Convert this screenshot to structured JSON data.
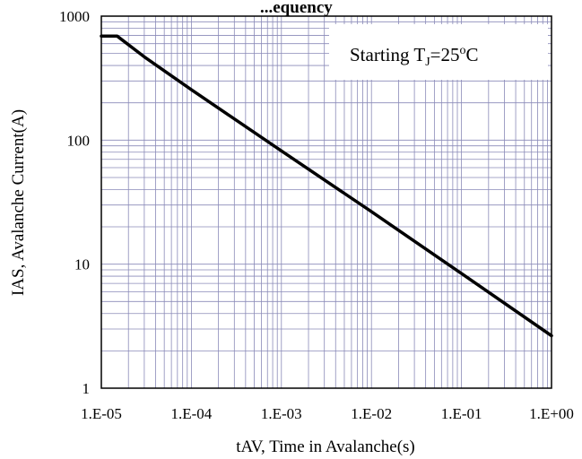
{
  "chart_data": {
    "type": "line",
    "title": "...equency",
    "xlabel": "tAV, Time in Avalanche(s)",
    "ylabel": "IAS, Avalanche Current(A)",
    "x_scale": "log",
    "y_scale": "log",
    "xlim": [
      1e-05,
      1
    ],
    "ylim": [
      1,
      1000
    ],
    "x_tick_labels": [
      "1.E-05",
      "1.E-04",
      "1.E-03",
      "1.E-02",
      "1.E-01",
      "1.E+00"
    ],
    "y_tick_labels": [
      "1",
      "10",
      "100",
      "1000"
    ],
    "grid": true,
    "annotation": {
      "prefix": "Starting T",
      "subscript": "J",
      "middle": "=25",
      "superscript": "o",
      "suffix": "C"
    },
    "series": [
      {
        "x": [
          1e-05,
          1.5e-05,
          3e-05,
          0.0001,
          0.001,
          0.01,
          0.1,
          1
        ],
        "y": [
          690,
          690,
          470,
          255,
          82,
          26.5,
          8.4,
          2.65
        ]
      }
    ],
    "colors": {
      "line": "#000000",
      "grid": "#8a8ab8",
      "frame": "#000000"
    }
  }
}
